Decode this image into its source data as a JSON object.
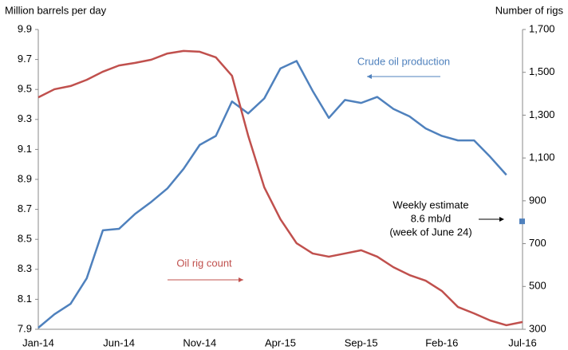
{
  "chart_data": {
    "type": "line",
    "y_label": "Million barrels per day",
    "y2_label": "Number of rigs",
    "categories": [
      "Jan-14",
      null,
      null,
      null,
      null,
      "Jun-14",
      null,
      null,
      null,
      null,
      "Nov-14",
      null,
      null,
      null,
      null,
      "Apr-15",
      null,
      null,
      null,
      null,
      "Sep-15",
      null,
      null,
      null,
      null,
      "Feb-16",
      null,
      null,
      null,
      null,
      "Jul-16"
    ],
    "series": [
      {
        "name": "Crude oil production",
        "color": "#4f81bd",
        "values": [
          7.91,
          8.0,
          8.07,
          8.24,
          8.56,
          8.57,
          8.67,
          8.75,
          8.84,
          8.97,
          9.13,
          9.19,
          9.42,
          9.34,
          9.44,
          9.64,
          9.69,
          9.49,
          9.31,
          9.43,
          9.41,
          9.45,
          9.37,
          9.32,
          9.24,
          9.19,
          9.16,
          9.16,
          9.05,
          8.93,
          null
        ]
      },
      {
        "name": "Oil rig count",
        "color": "#c0504d",
        "axis": "y2",
        "values": [
          1383,
          1421,
          1436,
          1465,
          1503,
          1532,
          1544,
          1559,
          1588,
          1600,
          1596,
          1570,
          1484,
          1205,
          963,
          814,
          702,
          654,
          639,
          654,
          669,
          639,
          590,
          553,
          527,
          479,
          404,
          374,
          341,
          319,
          334
        ]
      },
      {
        "marker": "square",
        "color": "#4f81bd",
        "values": [
          null,
          null,
          null,
          null,
          null,
          null,
          null,
          null,
          null,
          null,
          null,
          null,
          null,
          null,
          null,
          null,
          null,
          null,
          null,
          null,
          null,
          null,
          null,
          null,
          null,
          null,
          null,
          null,
          null,
          null,
          8.62
        ]
      }
    ],
    "annotations": [
      "Weekly estimate",
      "8.6 mb/d",
      "(week of June 24)"
    ],
    "ylim": [
      7.9,
      9.9
    ],
    "yticks": [
      7.9,
      8.1,
      8.3,
      8.5,
      8.7,
      8.9,
      9.1,
      9.3,
      9.5,
      9.7,
      9.9
    ],
    "y2lim": [
      300,
      1700
    ],
    "y2ticks": [
      300,
      500,
      700,
      900,
      {
        "value": 1100,
        "label": "1,100"
      },
      {
        "value": 1300,
        "label": "1,300"
      },
      {
        "value": 1500,
        "label": "1,500"
      },
      {
        "value": 1700,
        "label": "1,700"
      }
    ],
    "grid": false
  }
}
